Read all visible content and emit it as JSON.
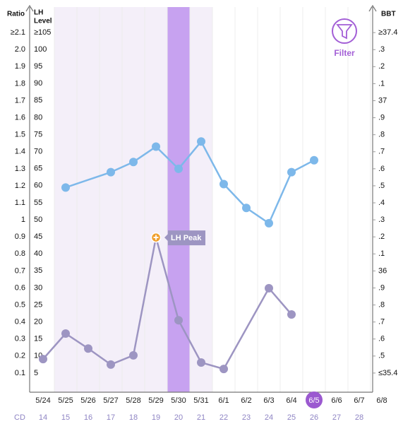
{
  "chart_data": {
    "type": "line",
    "categories": [
      "5/24",
      "5/25",
      "5/26",
      "5/27",
      "5/28",
      "5/29",
      "5/30",
      "5/31",
      "6/1",
      "6/2",
      "6/3",
      "6/4",
      "6/5",
      "6/6",
      "6/7",
      "6/8"
    ],
    "cycle_day_label": "CD",
    "cycle_days": [
      14,
      15,
      16,
      17,
      18,
      19,
      20,
      21,
      22,
      23,
      24,
      25,
      26,
      27,
      28,
      null
    ],
    "y_title": "Ratio",
    "ylim": [
      0,
      2.25
    ],
    "yticks": [
      {
        "value": 2.1,
        "label": "≥2.1"
      },
      {
        "value": 2,
        "label": "2.0"
      },
      1.9,
      1.8,
      1.7,
      1.6,
      1.5,
      1.4,
      1.3,
      1.2,
      1.1,
      1,
      0.9,
      0.8,
      0.7,
      0.6,
      0.5,
      0.4,
      0.3,
      0.2,
      0.1
    ],
    "y3_title_lines": [
      "LH",
      "Level"
    ],
    "y3lim": [
      0,
      112.45
    ],
    "y3ticks": [
      {
        "value": 105,
        "label": "≥105"
      },
      100,
      95,
      90,
      85,
      80,
      75,
      70,
      65,
      60,
      55,
      50,
      45,
      40,
      35,
      30,
      25,
      20,
      15,
      10,
      5
    ],
    "y2_title": "BBT",
    "y2lim": [
      35.3,
      37.55
    ],
    "y2ticks": [
      {
        "value": 37.4,
        "label": "≥37.4"
      },
      {
        "value": 37.3,
        "label": ".3"
      },
      {
        "value": 37.2,
        "label": ".2"
      },
      {
        "value": 37.1,
        "label": ".1"
      },
      37,
      {
        "value": 36.9,
        "label": ".9"
      },
      {
        "value": 36.8,
        "label": ".8"
      },
      {
        "value": 36.7,
        "label": ".7"
      },
      {
        "value": 36.6,
        "label": ".6"
      },
      {
        "value": 36.5,
        "label": ".5"
      },
      {
        "value": 36.4,
        "label": ".4"
      },
      {
        "value": 36.3,
        "label": ".3"
      },
      {
        "value": 36.2,
        "label": ".2"
      },
      {
        "value": 36.1,
        "label": ".1"
      },
      36,
      {
        "value": 35.9,
        "label": ".9"
      },
      {
        "value": 35.8,
        "label": ".8"
      },
      {
        "value": 35.7,
        "label": ".7"
      },
      {
        "value": 35.6,
        "label": ".6"
      },
      {
        "value": 35.5,
        "label": ".5"
      },
      {
        "value": 35.4,
        "label": "≤35.4"
      }
    ],
    "series": [
      {
        "color": "#7db8ea",
        "axis": "y2",
        "values": [
          null,
          36.49,
          null,
          36.58,
          36.64,
          36.73,
          36.6,
          36.76,
          36.51,
          36.37,
          36.28,
          36.58,
          36.65,
          null,
          null,
          null
        ]
      },
      {
        "color": "#9d95c2",
        "axis": "y3",
        "values": [
          9.1,
          16.6,
          12.2,
          7.5,
          10.2,
          44.8,
          20.5,
          8.1,
          6.2,
          null,
          29.9,
          22.2,
          null,
          null,
          null,
          null
        ]
      }
    ],
    "annotation": {
      "text": "LH Peak",
      "series": 1,
      "index": 5
    },
    "filter_label": "Filter"
  }
}
